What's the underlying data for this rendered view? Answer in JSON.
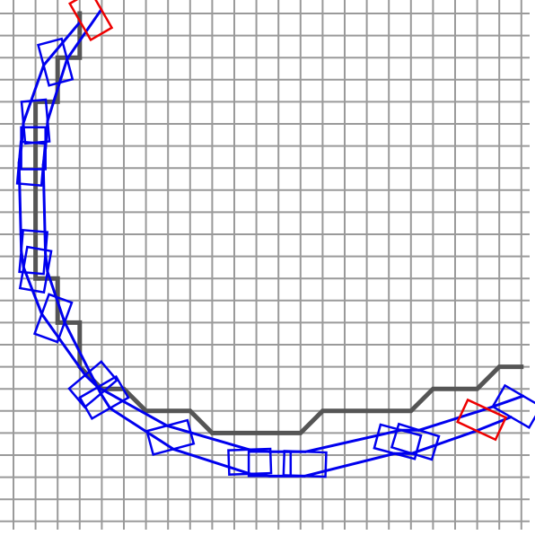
{
  "grid": {
    "cell_count": 24
  },
  "colors": {
    "background": "#ffffff",
    "grid": "#9a9a9a",
    "reference_path": "#555555",
    "vehicle_pose": "#0000ee",
    "endpoint_pose": "#ee0000"
  },
  "reference_path": {
    "cells": [
      [
        3,
        0
      ],
      [
        3,
        1
      ],
      [
        3,
        2
      ],
      [
        2,
        2
      ],
      [
        2,
        3
      ],
      [
        2,
        4
      ],
      [
        1,
        4
      ],
      [
        1,
        5
      ],
      [
        1,
        6
      ],
      [
        1,
        7
      ],
      [
        1,
        8
      ],
      [
        1,
        9
      ],
      [
        1,
        10
      ],
      [
        1,
        11
      ],
      [
        1,
        12
      ],
      [
        2,
        12
      ],
      [
        2,
        13
      ],
      [
        2,
        14
      ],
      [
        3,
        14
      ],
      [
        3,
        15
      ],
      [
        3,
        16
      ],
      [
        4,
        17
      ],
      [
        5,
        17
      ],
      [
        6,
        18
      ],
      [
        7,
        18
      ],
      [
        8,
        18
      ],
      [
        9,
        19
      ],
      [
        10,
        19
      ],
      [
        11,
        19
      ],
      [
        12,
        19
      ],
      [
        13,
        19
      ],
      [
        14,
        18
      ],
      [
        15,
        18
      ],
      [
        16,
        18
      ],
      [
        17,
        18
      ],
      [
        18,
        18
      ],
      [
        19,
        17
      ],
      [
        20,
        17
      ],
      [
        21,
        17
      ],
      [
        22,
        16
      ],
      [
        23,
        16
      ]
    ]
  },
  "poses": [
    {
      "c": [
        3.5,
        0.1
      ],
      "a": 60,
      "kind": "endpoint"
    },
    {
      "c": [
        1.9,
        2.2
      ],
      "a": 75,
      "kind": "vehicle"
    },
    {
      "c": [
        1.0,
        4.9
      ],
      "a": 85,
      "kind": "vehicle"
    },
    {
      "c": [
        0.9,
        6.1
      ],
      "a": 90,
      "kind": "vehicle"
    },
    {
      "c": [
        0.8,
        6.8
      ],
      "a": 95,
      "kind": "vehicle"
    },
    {
      "c": [
        0.9,
        10.8
      ],
      "a": 95,
      "kind": "vehicle"
    },
    {
      "c": [
        1.0,
        11.6
      ],
      "a": 100,
      "kind": "vehicle"
    },
    {
      "c": [
        1.8,
        13.8
      ],
      "a": 110,
      "kind": "vehicle"
    },
    {
      "c": [
        3.6,
        16.8
      ],
      "a": 140,
      "kind": "vehicle"
    },
    {
      "c": [
        4.1,
        17.4
      ],
      "a": 150,
      "kind": "vehicle"
    },
    {
      "c": [
        7.1,
        19.2
      ],
      "a": 165,
      "kind": "vehicle"
    },
    {
      "c": [
        10.7,
        20.3
      ],
      "a": 178,
      "kind": "vehicle"
    },
    {
      "c": [
        11.6,
        20.4
      ],
      "a": 180,
      "kind": "vehicle"
    },
    {
      "c": [
        13.2,
        20.4
      ],
      "a": 182,
      "kind": "vehicle"
    },
    {
      "c": [
        17.4,
        19.4
      ],
      "a": 195,
      "kind": "vehicle"
    },
    {
      "c": [
        18.2,
        19.4
      ],
      "a": 197,
      "kind": "vehicle"
    },
    {
      "c": [
        21.2,
        18.4
      ],
      "a": 205,
      "kind": "endpoint"
    },
    {
      "c": [
        22.8,
        17.8
      ],
      "a": 210,
      "kind": "vehicle"
    }
  ],
  "pose_size": {
    "length": 1.9,
    "width": 1.1
  }
}
